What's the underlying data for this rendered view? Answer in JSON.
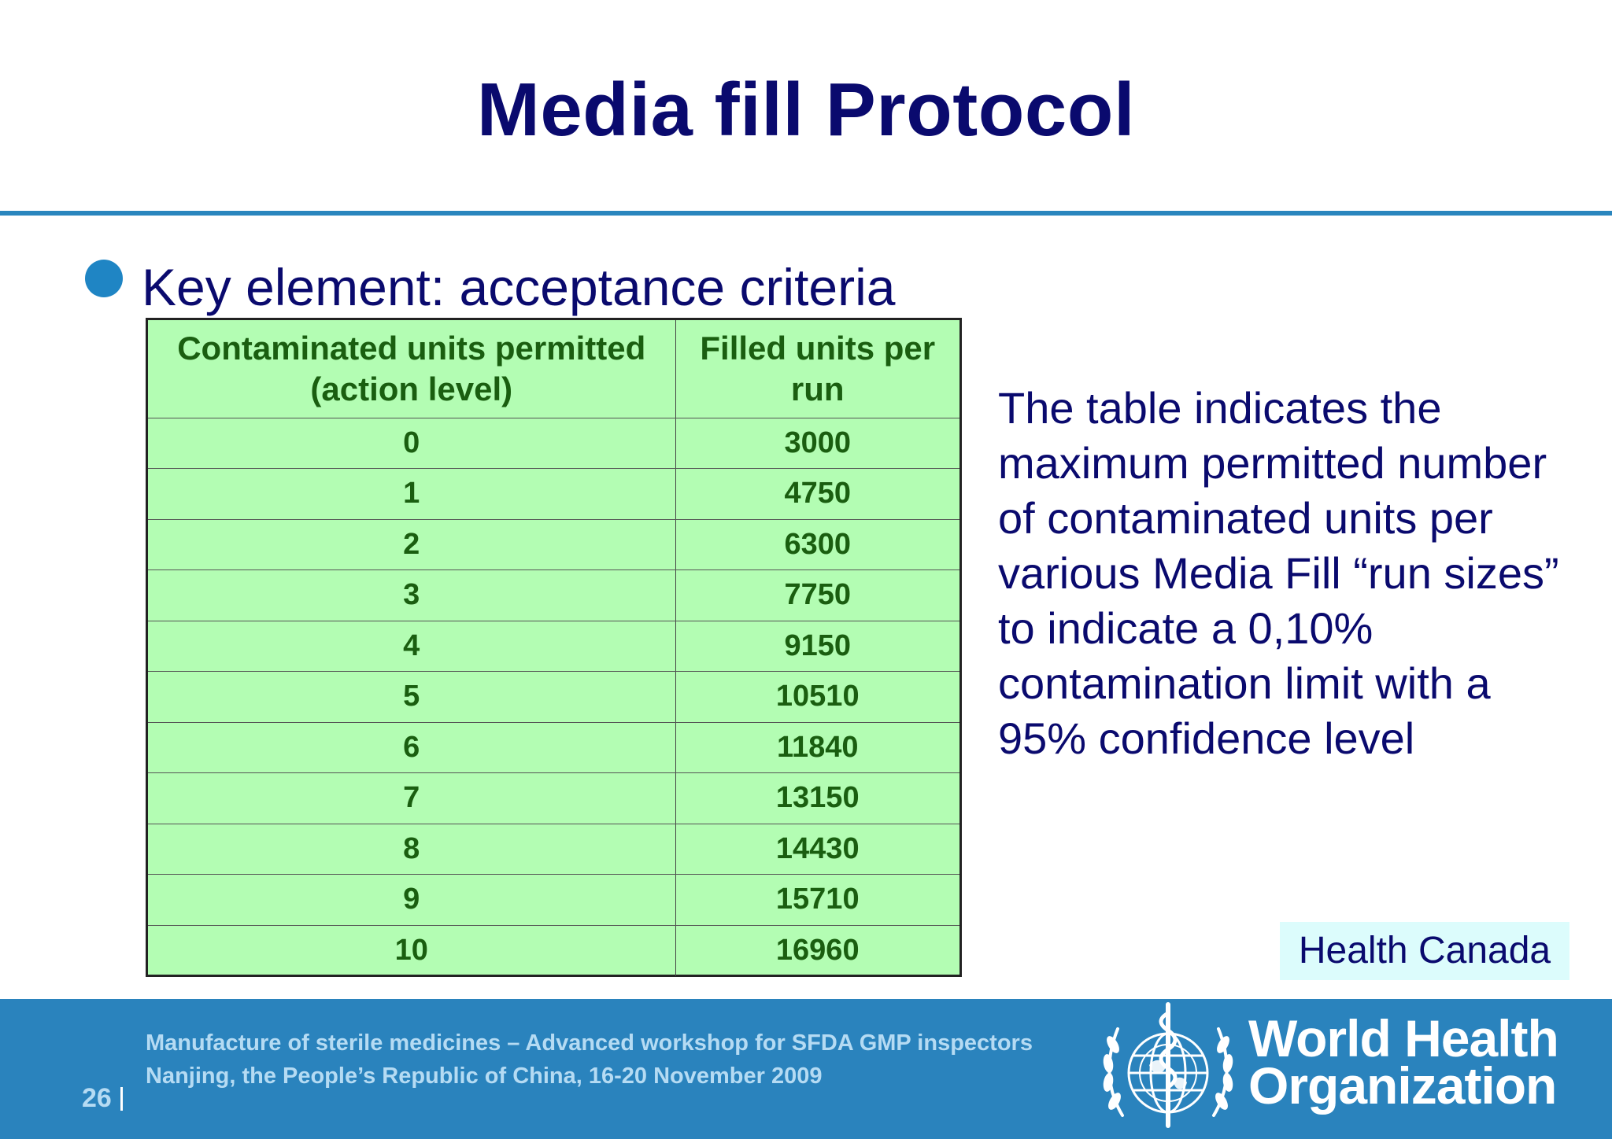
{
  "slide": {
    "title": "Media fill Protocol",
    "bullet": "Key element: acceptance criteria",
    "note": "The table indicates the maximum permitted number of contaminated units per various Media Fill “run sizes” to indicate a 0,10% contamination limit with a 95% confidence level",
    "source_badge": "Health Canada"
  },
  "table": {
    "headers": [
      "Contaminated units permitted (action level)",
      "Filled units per run"
    ],
    "rows": [
      [
        "0",
        "3000"
      ],
      [
        "1",
        "4750"
      ],
      [
        "2",
        "6300"
      ],
      [
        "3",
        "7750"
      ],
      [
        "4",
        "9150"
      ],
      [
        "5",
        "10510"
      ],
      [
        "6",
        "11840"
      ],
      [
        "7",
        "13150"
      ],
      [
        "8",
        "14430"
      ],
      [
        "9",
        "15710"
      ],
      [
        "10",
        "16960"
      ]
    ]
  },
  "footer": {
    "line1": "Manufacture of sterile medicines – Advanced workshop for SFDA GMP inspectors",
    "line2": "Nanjing, the People’s Republic of China, 16-20 November 2009",
    "page_number": "26",
    "org_line1": "World Health",
    "org_line2": "Organization",
    "logo_icon": "who-emblem-icon"
  },
  "colors": {
    "title": "#0a0a6e",
    "rule": "#2a86be",
    "table_fill": "#b3fdb3",
    "table_text": "#1a5e10",
    "footer_bg": "#2a83bd",
    "footer_text": "#b5dbf3",
    "badge_bg": "#dcfcfc"
  }
}
